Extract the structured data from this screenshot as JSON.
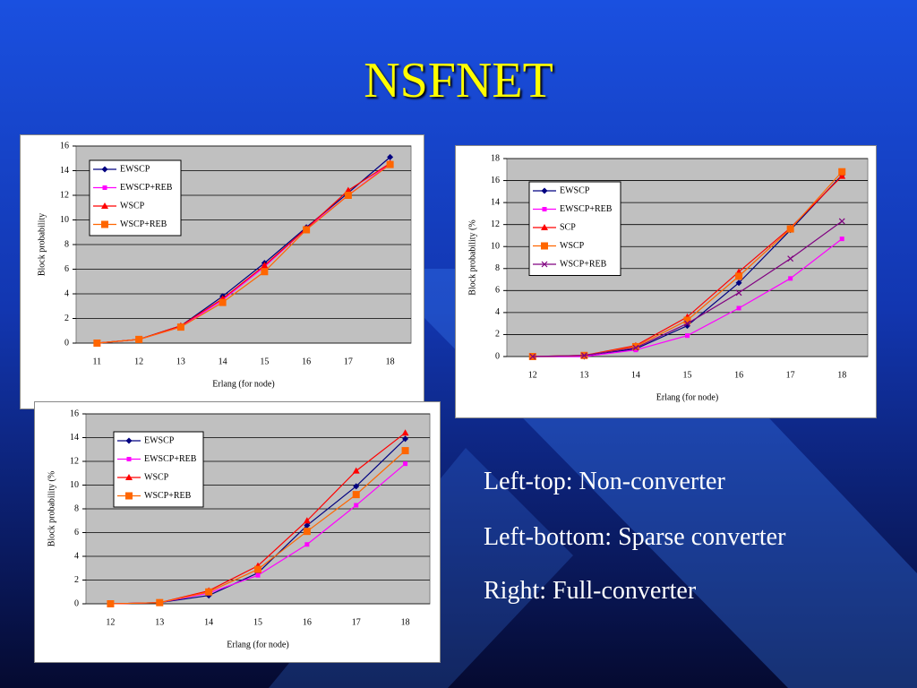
{
  "title": "NSFNET",
  "notes": [
    "Left-top: Non-converter",
    "Left-bottom: Sparse converter",
    "Right: Full-converter"
  ],
  "chart_data": [
    {
      "type": "line",
      "x_label": "Erlang (for node)",
      "y_label": "Block probability",
      "categories": [
        11,
        12,
        13,
        14,
        15,
        16,
        17,
        18
      ],
      "ylim": [
        0,
        16
      ],
      "yticks": [
        0,
        2,
        4,
        6,
        8,
        10,
        12,
        14,
        16
      ],
      "grid": true,
      "legend": "upper-left",
      "series": [
        {
          "name": "EWSCP",
          "color": "#000080",
          "marker": "diamond",
          "values": [
            0,
            0.3,
            1.4,
            3.8,
            6.5,
            9.4,
            12.2,
            15.1
          ]
        },
        {
          "name": "EWSCP+REB",
          "color": "#ff00ff",
          "marker": "square",
          "values": [
            0,
            0.3,
            1.3,
            3.5,
            6.2,
            9.3,
            12.0,
            14.6
          ]
        },
        {
          "name": "WSCP",
          "color": "#ff0000",
          "marker": "triangle",
          "values": [
            0,
            0.3,
            1.4,
            3.6,
            6.3,
            9.3,
            12.4,
            14.6
          ]
        },
        {
          "name": "WSCP+REB",
          "color": "#ff6600",
          "marker": "bigsquare",
          "values": [
            0,
            0.3,
            1.3,
            3.3,
            5.8,
            9.2,
            12.0,
            14.5
          ]
        }
      ]
    },
    {
      "type": "line",
      "x_label": "Erlang (for node)",
      "y_label": "Block probability (%",
      "categories": [
        12,
        13,
        14,
        15,
        16,
        17,
        18
      ],
      "ylim": [
        0,
        18
      ],
      "yticks": [
        0,
        2,
        4,
        6,
        8,
        10,
        12,
        14,
        16,
        18
      ],
      "grid": true,
      "legend": "upper-left",
      "series": [
        {
          "name": "EWSCP",
          "color": "#000080",
          "marker": "diamond",
          "values": [
            0,
            0,
            0.7,
            2.8,
            6.7,
            11.5,
            16.5
          ]
        },
        {
          "name": "EWSCP+REB",
          "color": "#ff00ff",
          "marker": "square",
          "values": [
            0,
            0,
            0.6,
            1.9,
            4.4,
            7.1,
            10.7
          ]
        },
        {
          "name": "SCP",
          "color": "#ff0000",
          "marker": "triangle",
          "values": [
            0,
            0.1,
            1.0,
            3.6,
            7.7,
            11.7,
            16.4
          ]
        },
        {
          "name": "WSCP",
          "color": "#ff6600",
          "marker": "bigsquare",
          "values": [
            0,
            0.1,
            0.9,
            3.3,
            7.3,
            11.6,
            16.8
          ]
        },
        {
          "name": "WSCP+REB",
          "color": "#800080",
          "marker": "x",
          "values": [
            0,
            0.1,
            0.8,
            3.0,
            5.8,
            8.9,
            12.3
          ]
        }
      ]
    },
    {
      "type": "line",
      "x_label": "Erlang (for node)",
      "y_label": "Block probability (%",
      "categories": [
        12,
        13,
        14,
        15,
        16,
        17,
        18
      ],
      "ylim": [
        0,
        16
      ],
      "yticks": [
        0,
        2,
        4,
        6,
        8,
        10,
        12,
        14,
        16
      ],
      "grid": true,
      "legend": "upper-left",
      "series": [
        {
          "name": "EWSCP",
          "color": "#000080",
          "marker": "diamond",
          "values": [
            0,
            0.1,
            0.7,
            2.6,
            6.6,
            9.9,
            13.9
          ]
        },
        {
          "name": "EWSCP+REB",
          "color": "#ff00ff",
          "marker": "square",
          "values": [
            0,
            0.1,
            0.9,
            2.4,
            5.0,
            8.3,
            11.8
          ]
        },
        {
          "name": "WSCP",
          "color": "#ff0000",
          "marker": "triangle",
          "values": [
            0,
            0.1,
            1.1,
            3.2,
            7.0,
            11.2,
            14.4
          ]
        },
        {
          "name": "WSCP+REB",
          "color": "#ff6600",
          "marker": "bigsquare",
          "values": [
            0,
            0.1,
            1.0,
            2.9,
            6.1,
            9.2,
            12.9
          ]
        }
      ]
    }
  ]
}
